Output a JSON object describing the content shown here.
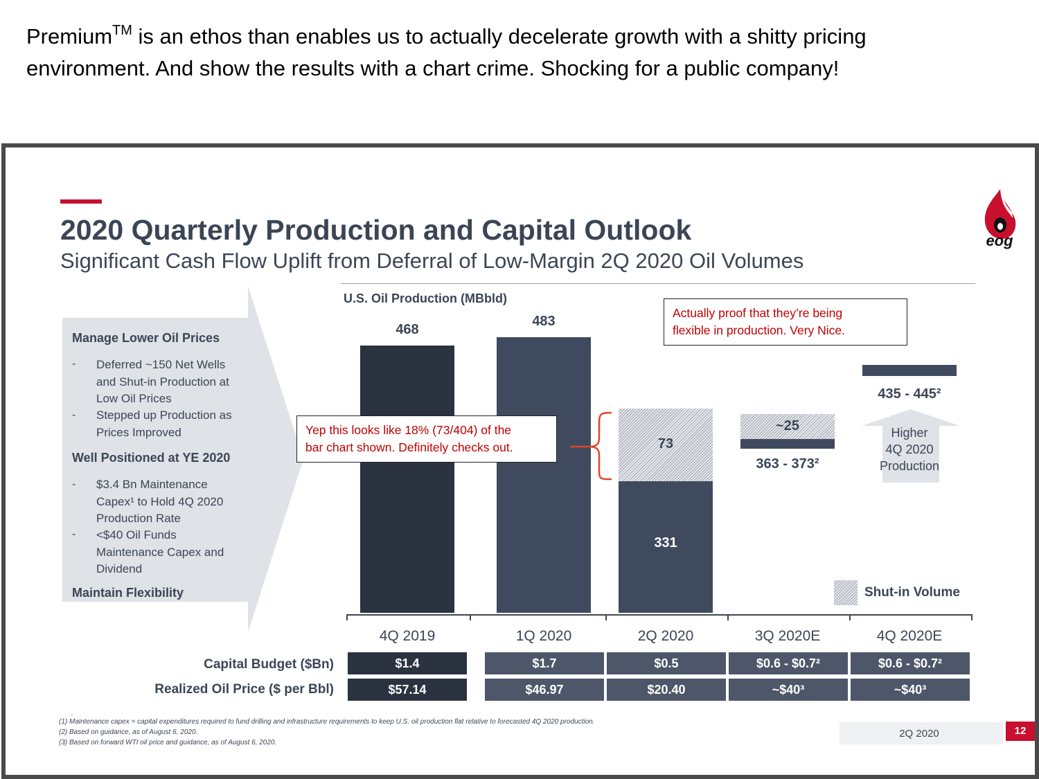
{
  "caption": {
    "line1_before": "Premium",
    "line1_sup": "TM",
    "line1_after": " is an ethos than enables us to actually decelerate growth with a shitty pricing",
    "line2": "environment. And show the results with a chart crime. Shocking for a public company!"
  },
  "slide": {
    "title": "2020 Quarterly Production and Capital Outlook",
    "subtitle": "Significant Cash Flow Uplift from Deferral of Low-Margin 2Q 2020 Oil Volumes",
    "logo_text": "eog",
    "page_label": "2Q 2020",
    "page_number": "12",
    "colors": {
      "accent_red": "#c8102e",
      "bar_dark": "#2b3240",
      "bar_mid": "#3f4a5e",
      "text": "#3c4555",
      "callout_red": "#c00000"
    }
  },
  "side_panel": {
    "heading1": "Manage Lower Oil Prices",
    "bullets1": [
      {
        "dash": "-",
        "text": [
          "Deferred ~150 Net Wells",
          "and Shut-in Production at",
          "Low Oil Prices"
        ]
      },
      {
        "dash": "-",
        "text": [
          "Stepped up Production as",
          "Prices Improved"
        ]
      }
    ],
    "heading2": "Well Positioned at YE 2020",
    "bullets2": [
      {
        "dash": "-",
        "text": [
          "$3.4 Bn Maintenance",
          "Capex¹ to Hold 4Q 2020",
          "Production Rate"
        ]
      },
      {
        "dash": "-",
        "text": [
          "<$40 Oil Funds",
          "Maintenance Capex and",
          "Dividend"
        ]
      }
    ],
    "heading3": "Maintain Flexibility"
  },
  "chart_data": {
    "type": "bar",
    "title": "U.S. Oil Production (MBbld)",
    "categories": [
      "4Q 2019",
      "1Q 2020",
      "2Q 2020",
      "3Q 2020E",
      "4Q 2020E"
    ],
    "series": [
      {
        "name": "Production",
        "values": [
          468,
          483,
          331,
          null,
          null
        ]
      },
      {
        "name": "Shut-in Volume",
        "values": [
          null,
          null,
          73,
          25,
          null
        ]
      }
    ],
    "value_labels": [
      "468",
      "483",
      "331",
      "73",
      "~25"
    ],
    "guidance_ranges": [
      {
        "category": "3Q 2020E",
        "low": 363,
        "high": 373,
        "label": "363 - 373²"
      },
      {
        "category": "4Q 2020E",
        "low": 435,
        "high": 445,
        "label": "435 - 445²"
      }
    ],
    "arrow_label": [
      "Higher",
      "4Q 2020",
      "Production"
    ],
    "legend": {
      "label": "Shut-in Volume",
      "placement": "bottom-right"
    },
    "ylim": [
      0,
      520
    ]
  },
  "callouts": {
    "top_right": [
      "Actually proof that they’re being",
      "flexible in production. Very Nice."
    ],
    "middle": [
      "Yep this looks like 18% (73/404) of the",
      "bar chart shown. Definitely checks out."
    ]
  },
  "table": {
    "rows": [
      {
        "label": "Capital Budget ($Bn)",
        "values": [
          "$1.4",
          "$1.7",
          "$0.5",
          "$0.6 - $0.7²",
          "$0.6 - $0.7²"
        ]
      },
      {
        "label": "Realized Oil Price ($ per Bbl)",
        "values": [
          "$57.14",
          "$46.97",
          "$20.40",
          "~$40³",
          "~$40³"
        ]
      }
    ]
  },
  "footnotes": [
    ".",
    "(1)    Maintenance capex = capital expenditures required to fund drilling and infrastructure requirements to keep U.S. oil production flat relative to forecasted 4Q 2020 production.",
    "(2)    Based on guidance, as of August 6, 2020.",
    "(3)    Based on forward WTI oil price and guidance, as of August 6, 2020."
  ]
}
